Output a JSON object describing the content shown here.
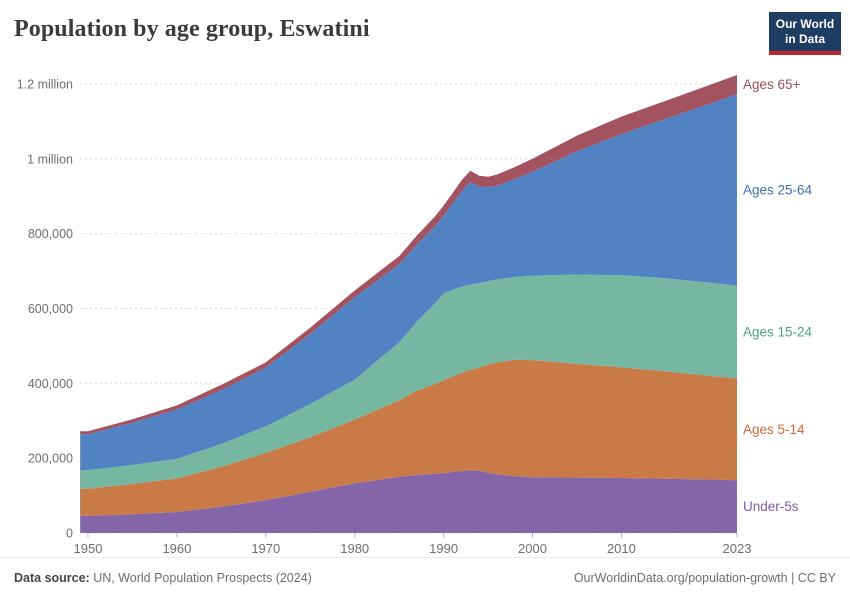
{
  "header": {
    "title": "Population by age group, Eswatini",
    "logo": {
      "line1": "Our World",
      "line2": "in Data"
    }
  },
  "chart_data": {
    "type": "area",
    "stacked": true,
    "title": "Population by age group, Eswatini",
    "xlabel": "",
    "ylabel": "Population",
    "xlim": [
      1950,
      2023
    ],
    "ylim": [
      0,
      1230000
    ],
    "grid": "dashed-horizontal",
    "legend_position": "right-of-plot-colored-labels",
    "x": [
      1950,
      1955,
      1960,
      1965,
      1970,
      1975,
      1980,
      1985,
      1987,
      1989,
      1990,
      1991,
      1992,
      1993,
      1994,
      1995,
      1996,
      1998,
      2000,
      2005,
      2010,
      2015,
      2020,
      2023
    ],
    "series": [
      {
        "name": "Under-5s",
        "color": "#8465a9",
        "label_color": "#7e59a6",
        "values": [
          46000,
          50000,
          56000,
          70000,
          88000,
          110000,
          133000,
          150000,
          155000,
          158000,
          160000,
          163000,
          166000,
          168000,
          166000,
          161000,
          157000,
          152000,
          149000,
          148000,
          147000,
          145000,
          143000,
          141000
        ]
      },
      {
        "name": "Ages 5-14",
        "color": "#ca7a46",
        "label_color": "#d0693b",
        "values": [
          72000,
          81000,
          90000,
          107000,
          126000,
          146000,
          170000,
          205000,
          225000,
          240000,
          248000,
          255000,
          262000,
          268000,
          276000,
          289000,
          299000,
          311000,
          313000,
          304000,
          296000,
          287000,
          277000,
          272000
        ]
      },
      {
        "name": "Ages 15-24",
        "color": "#76b7a2",
        "label_color": "#4ba189",
        "values": [
          50000,
          51000,
          52000,
          61000,
          71000,
          89000,
          107000,
          155000,
          185000,
          215000,
          232000,
          232000,
          230000,
          228000,
          226000,
          223000,
          222000,
          221000,
          226000,
          239000,
          246000,
          249000,
          249000,
          248000
        ]
      },
      {
        "name": "Ages 25-64",
        "color": "#5183c4",
        "label_color": "#3d6fbb",
        "values": [
          96000,
          113000,
          132000,
          144000,
          157000,
          187000,
          220000,
          208000,
          206000,
          206000,
          208000,
          230000,
          254000,
          274000,
          258000,
          251000,
          250000,
          262000,
          277000,
          329000,
          377000,
          426000,
          479000,
          512000
        ]
      },
      {
        "name": "Ages 65+",
        "color": "#a2535f",
        "label_color": "#9a4e58",
        "values": [
          8000,
          9000,
          11000,
          14000,
          14000,
          17000,
          18000,
          22000,
          24000,
          26000,
          27000,
          28000,
          30000,
          30000,
          29000,
          28000,
          30000,
          32000,
          35000,
          42000,
          47000,
          48000,
          50000,
          51000
        ]
      }
    ],
    "y_ticks": [
      {
        "value": 0,
        "label": "0"
      },
      {
        "value": 200000,
        "label": "200,000"
      },
      {
        "value": 400000,
        "label": "400,000"
      },
      {
        "value": 600000,
        "label": "600,000"
      },
      {
        "value": 800000,
        "label": "800,000"
      },
      {
        "value": 1000000,
        "label": "1 million"
      },
      {
        "value": 1200000,
        "label": "1.2 million"
      }
    ],
    "x_ticks": [
      1950,
      1960,
      1970,
      1980,
      1990,
      2000,
      2010,
      2023
    ]
  },
  "footer": {
    "source_label": "Data source:",
    "source_text": " UN, World Population Prospects (2024)",
    "right_text": "OurWorldinData.org/population-growth | CC BY"
  }
}
